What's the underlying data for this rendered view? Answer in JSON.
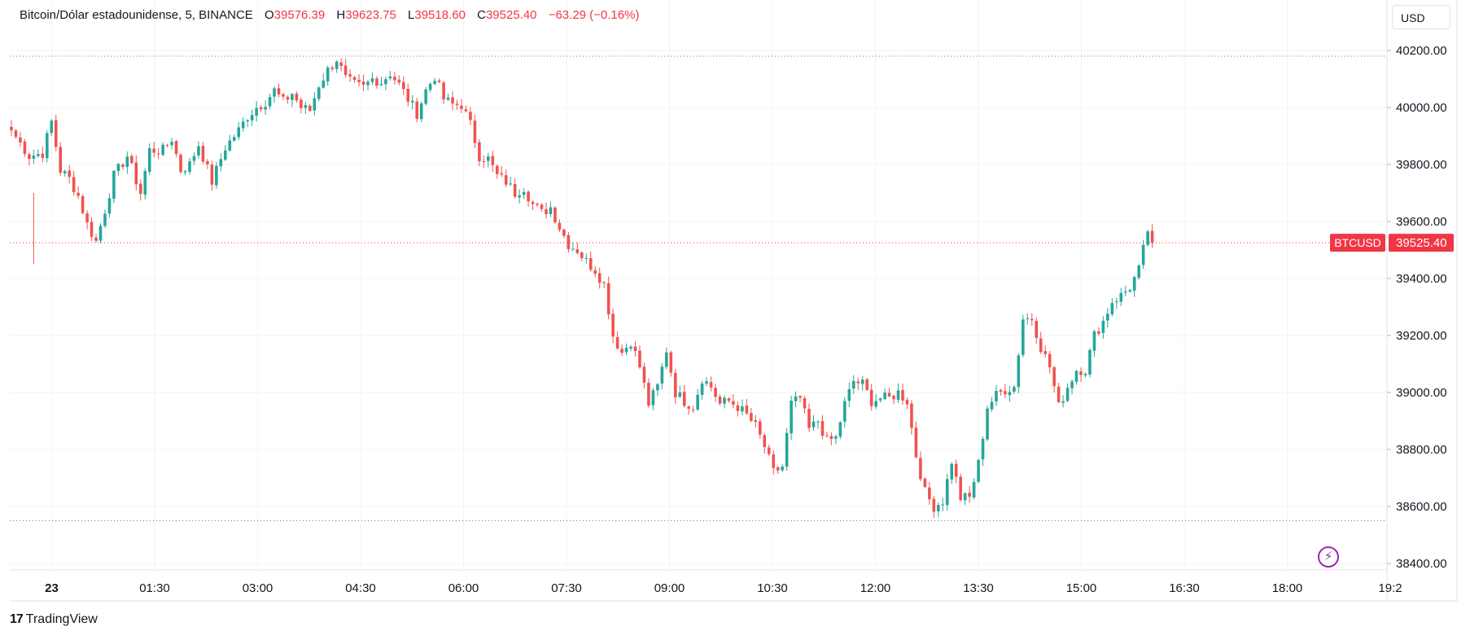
{
  "legend": {
    "symbol": "Bitcoin/Dólar estadounidense, 5, BINANCE",
    "open_key": "O",
    "open": "39576.39",
    "high_key": "H",
    "high": "39623.75",
    "low_key": "L",
    "low": "39518.60",
    "close_key": "C",
    "close": "39525.40",
    "change": "−63.29 (−0.16%)"
  },
  "currency_label": "USD",
  "brand": "TradingView",
  "colors": {
    "up": "#26a69a",
    "down": "#ef5350",
    "last": "#f23645",
    "grid": "#f0f3fa"
  },
  "chart_data": {
    "type": "candlestick",
    "price_ticks": [
      "40200.00",
      "40000.00",
      "39800.00",
      "39600.00",
      "39400.00",
      "39200.00",
      "39000.00",
      "38800.00",
      "38600.00",
      "38400.00"
    ],
    "time_ticks": [
      "23",
      "01:30",
      "03:00",
      "04:30",
      "06:00",
      "07:30",
      "09:00",
      "10:30",
      "12:00",
      "13:30",
      "15:00",
      "16:30",
      "18:00",
      "19:2"
    ],
    "y_range": [
      38350,
      40380
    ],
    "high_line": 40180,
    "low_line": 38550,
    "last_price": {
      "symbol": "BTCUSD",
      "value": "39525.40",
      "price": 39525.4
    },
    "anchors": [
      [
        0,
        39920
      ],
      [
        4,
        39830
      ],
      [
        7,
        39840
      ],
      [
        9,
        39950
      ],
      [
        11,
        39780
      ],
      [
        13,
        39750
      ],
      [
        15,
        39690
      ],
      [
        17,
        39590
      ],
      [
        19,
        39530
      ],
      [
        21,
        39640
      ],
      [
        23,
        39760
      ],
      [
        26,
        39830
      ],
      [
        29,
        39700
      ],
      [
        31,
        39850
      ],
      [
        34,
        39850
      ],
      [
        36,
        39890
      ],
      [
        38,
        39780
      ],
      [
        40,
        39800
      ],
      [
        42,
        39870
      ],
      [
        45,
        39740
      ],
      [
        48,
        39860
      ],
      [
        51,
        39920
      ],
      [
        53,
        39970
      ],
      [
        55,
        40000
      ],
      [
        57,
        40020
      ],
      [
        59,
        40060
      ],
      [
        61,
        40020
      ],
      [
        63,
        40050
      ],
      [
        65,
        40000
      ],
      [
        67,
        39990
      ],
      [
        69,
        40080
      ],
      [
        71,
        40130
      ],
      [
        73,
        40170
      ],
      [
        75,
        40100
      ],
      [
        77,
        40080
      ],
      [
        79,
        40070
      ],
      [
        81,
        40100
      ],
      [
        83,
        40090
      ],
      [
        85,
        40120
      ],
      [
        87,
        40080
      ],
      [
        89,
        40030
      ],
      [
        91,
        39980
      ],
      [
        93,
        40060
      ],
      [
        95,
        40110
      ],
      [
        97,
        40030
      ],
      [
        99,
        40010
      ],
      [
        101,
        40010
      ],
      [
        103,
        39940
      ],
      [
        105,
        39830
      ],
      [
        107,
        39820
      ],
      [
        109,
        39760
      ],
      [
        111,
        39740
      ],
      [
        113,
        39700
      ],
      [
        115,
        39720
      ],
      [
        117,
        39660
      ],
      [
        119,
        39630
      ],
      [
        121,
        39650
      ],
      [
        123,
        39580
      ],
      [
        125,
        39520
      ],
      [
        127,
        39500
      ],
      [
        129,
        39460
      ],
      [
        131,
        39430
      ],
      [
        133,
        39380
      ],
      [
        135,
        39200
      ],
      [
        137,
        39140
      ],
      [
        139,
        39180
      ],
      [
        141,
        39090
      ],
      [
        143,
        38960
      ],
      [
        145,
        39020
      ],
      [
        147,
        39150
      ],
      [
        149,
        39000
      ],
      [
        151,
        38970
      ],
      [
        153,
        38950
      ],
      [
        155,
        39050
      ],
      [
        157,
        39020
      ],
      [
        159,
        38960
      ],
      [
        161,
        38970
      ],
      [
        163,
        38950
      ],
      [
        165,
        38920
      ],
      [
        167,
        38880
      ],
      [
        169,
        38810
      ],
      [
        171,
        38720
      ],
      [
        173,
        38740
      ],
      [
        175,
        38960
      ],
      [
        177,
        38980
      ],
      [
        179,
        38870
      ],
      [
        181,
        38900
      ],
      [
        183,
        38830
      ],
      [
        185,
        38840
      ],
      [
        187,
        38960
      ],
      [
        189,
        39040
      ],
      [
        191,
        39030
      ],
      [
        193,
        38970
      ],
      [
        195,
        38980
      ],
      [
        197,
        38980
      ],
      [
        199,
        39000
      ],
      [
        201,
        38970
      ],
      [
        203,
        38780
      ],
      [
        205,
        38650
      ],
      [
        207,
        38600
      ],
      [
        209,
        38620
      ],
      [
        211,
        38760
      ],
      [
        213,
        38630
      ],
      [
        215,
        38630
      ],
      [
        217,
        38750
      ],
      [
        219,
        38950
      ],
      [
        221,
        38990
      ],
      [
        223,
        39010
      ],
      [
        225,
        39020
      ],
      [
        227,
        39260
      ],
      [
        229,
        39260
      ],
      [
        231,
        39160
      ],
      [
        233,
        39090
      ],
      [
        235,
        38950
      ],
      [
        237,
        39020
      ],
      [
        239,
        39080
      ],
      [
        241,
        39080
      ],
      [
        243,
        39200
      ],
      [
        245,
        39250
      ],
      [
        247,
        39320
      ],
      [
        249,
        39340
      ],
      [
        251,
        39370
      ],
      [
        253,
        39430
      ],
      [
        255,
        39570
      ],
      [
        256,
        39525
      ]
    ]
  }
}
